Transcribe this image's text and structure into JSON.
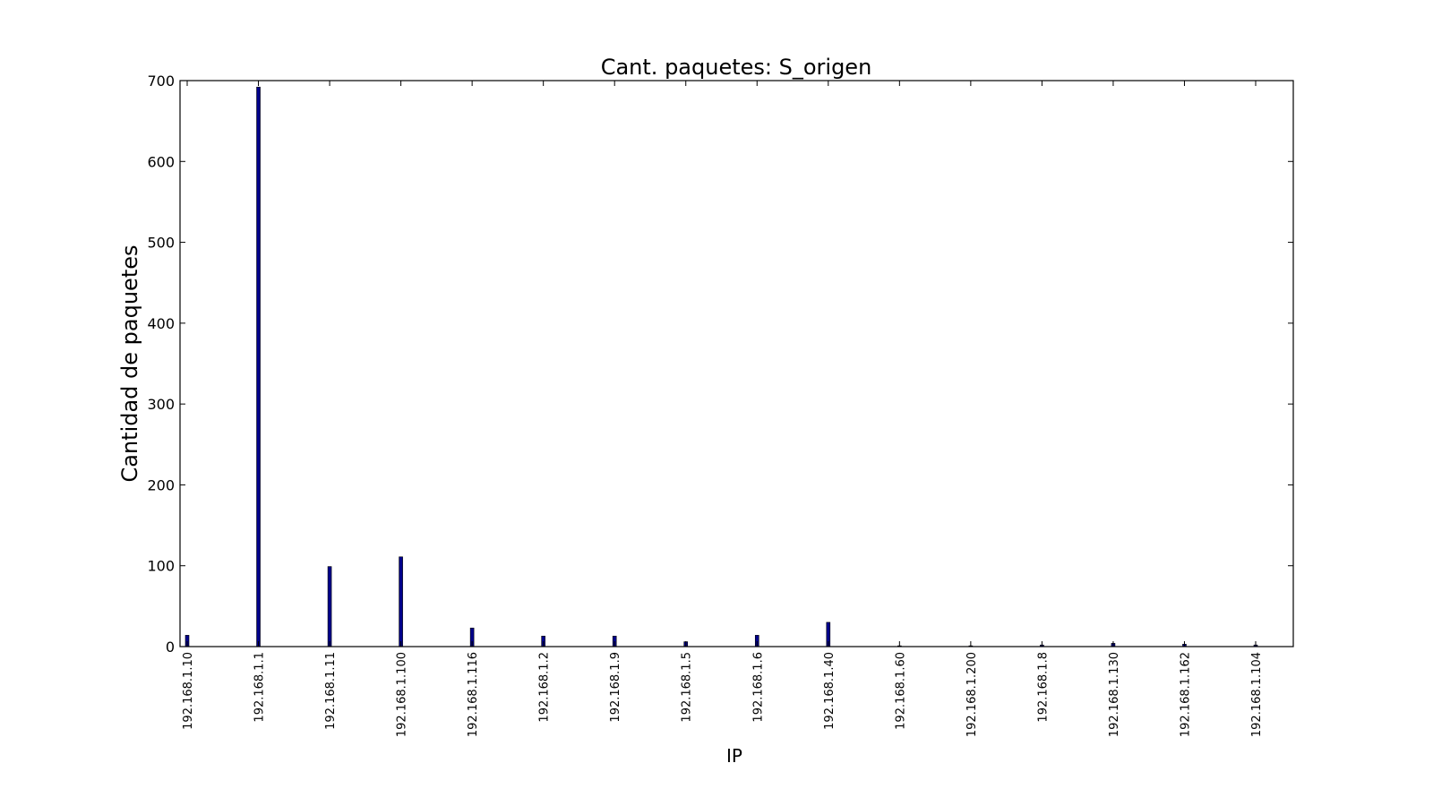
{
  "chart_data": {
    "type": "bar",
    "title": "Cant. paquetes: S_origen",
    "xlabel": "IP",
    "ylabel": "Cantidad de paquetes",
    "categories": [
      "192.168.1.10",
      "192.168.1.1",
      "192.168.1.11",
      "192.168.1.100",
      "192.168.1.116",
      "192.168.1.2",
      "192.168.1.9",
      "192.168.1.5",
      "192.168.1.6",
      "192.168.1.40",
      "192.168.1.60",
      "192.168.1.200",
      "192.168.1.8",
      "192.168.1.130",
      "192.168.1.162",
      "192.168.1.104"
    ],
    "values": [
      14,
      692,
      99,
      111,
      23,
      13,
      13,
      6,
      14,
      30,
      1,
      1,
      2,
      4,
      3,
      2
    ],
    "ylim": [
      0,
      700
    ],
    "yticks": [
      0,
      100,
      200,
      300,
      400,
      500,
      600,
      700
    ],
    "grid": false,
    "colors": {
      "bar": "#00008b",
      "edge": "#000000",
      "axes": "#000000"
    }
  }
}
